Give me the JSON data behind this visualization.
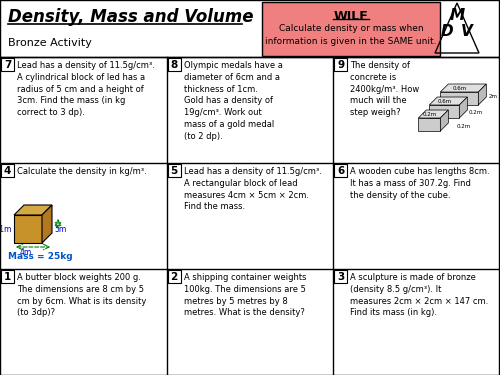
{
  "title": "Density, Mass and Volume",
  "subtitle": "Bronze Activity",
  "wilf_title": "WILF",
  "wilf_text": "Calculate density or mass when\ninformation is given in the SAME unit.",
  "bg_color": "#ffffff",
  "header_bg": "#f08080",
  "cells": [
    {
      "num": "7",
      "text": "Lead has a density of 11.5g/cm³.\nA cylindrical block of led has a\nradius of 5 cm and a height of\n3cm. Find the mass (in kg\ncorrect to 3 dp).",
      "row": 0,
      "col": 0
    },
    {
      "num": "8",
      "text": "Olympic medals have a\ndiameter of 6cm and a\nthickness of 1cm.\nGold has a density of\n19g/cm³. Work out\nmass of a gold medal\n(to 2 dp).",
      "row": 0,
      "col": 1
    },
    {
      "num": "9",
      "text": "The density of\nconcrete is\n2400kg/m³. How\nmuch will the\nstep weigh?",
      "row": 0,
      "col": 2,
      "has_step_diagram": true
    },
    {
      "num": "4",
      "text": "Calculate the density in kg/m³.",
      "row": 1,
      "col": 0,
      "has_cube_diagram": true
    },
    {
      "num": "5",
      "text": "Lead has a density of 11.5g/cm³.\nA rectangular block of lead\nmeasures 4cm × 5cm × 2cm.\nFind the mass.",
      "row": 1,
      "col": 1
    },
    {
      "num": "6",
      "text": "A wooden cube has lengths 8cm.\nIt has a mass of 307.2g. Find\nthe density of the cube.",
      "row": 1,
      "col": 2
    },
    {
      "num": "1",
      "text": "A butter block weights 200 g.\nThe dimensions are 8 cm by 5\ncm by 6cm. What is its density\n(to 3dp)?",
      "row": 2,
      "col": 0
    },
    {
      "num": "2",
      "text": "A shipping container weights\n100kg. The dimensions are 5\nmetres by 5 metres by 8\nmetres. What is the density?",
      "row": 2,
      "col": 1
    },
    {
      "num": "3",
      "text": "A sculpture is made of bronze\n(density 8.5 g/cm³). It\nmeasures 2cm × 2cm × 147 cm.\nFind its mass (in kg).",
      "row": 2,
      "col": 2
    }
  ]
}
